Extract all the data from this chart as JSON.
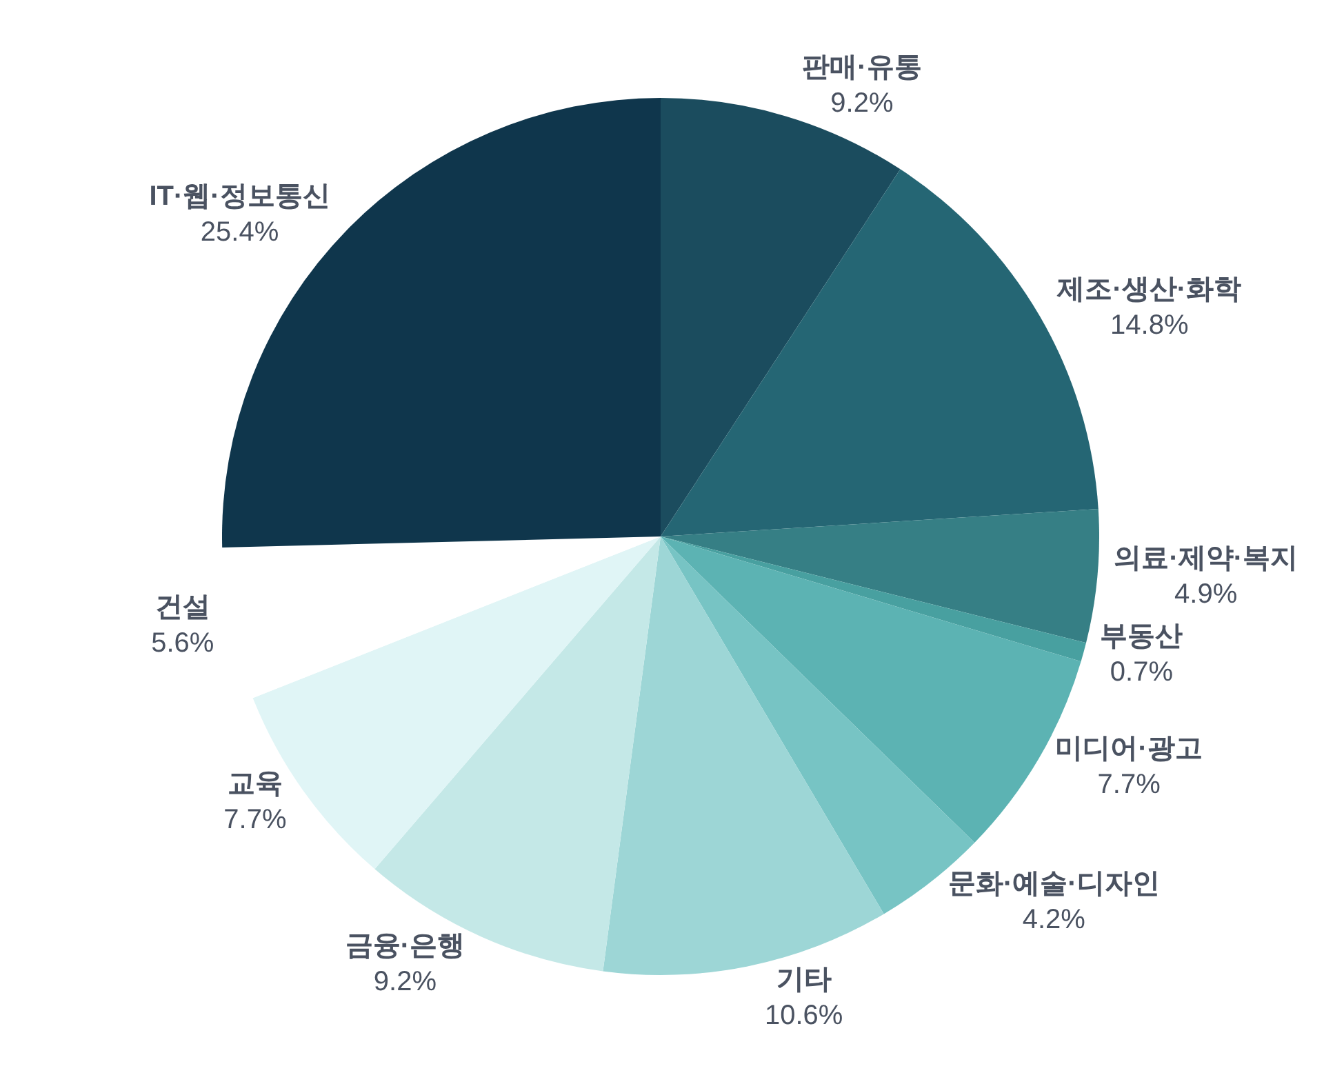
{
  "chart_data": {
    "type": "pie",
    "categories": [
      "판매·유통",
      "제조·생산·화학",
      "의료·제약·복지",
      "부동산",
      "미디어·광고",
      "문화·예술·디자인",
      "기타",
      "금융·은행",
      "교육",
      "건설",
      "IT·웹·정보통신"
    ],
    "values": [
      9.2,
      14.8,
      4.9,
      0.7,
      7.7,
      4.2,
      10.6,
      9.2,
      7.7,
      5.6,
      25.4
    ],
    "value_labels": [
      "9.2%",
      "14.8%",
      "4.9%",
      "0.7%",
      "7.7%",
      "4.2%",
      "10.6%",
      "9.2%",
      "7.7%",
      "5.6%",
      "25.4%"
    ],
    "colors": [
      "#1b4c5e",
      "#256674",
      "#367f85",
      "#48a0a0",
      "#5cb3b3",
      "#77c4c4",
      "#9dd6d6",
      "#c4e8e7",
      "#e0f5f6",
      "#ffffff",
      "#0f364c"
    ],
    "legend": false
  }
}
